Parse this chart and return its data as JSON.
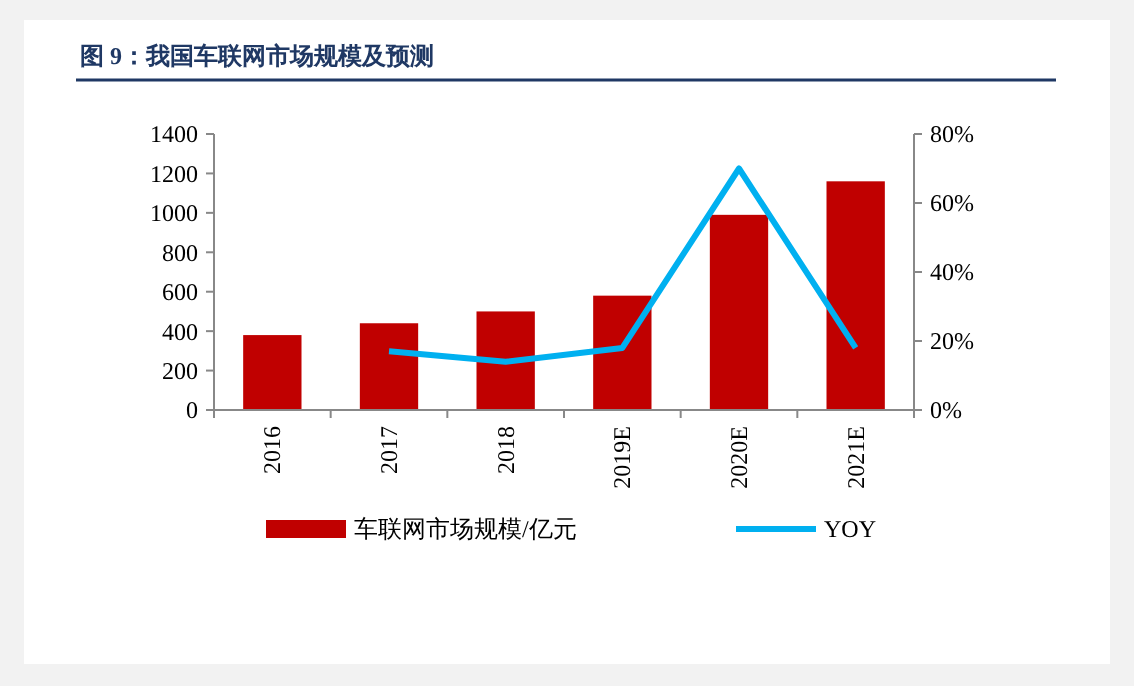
{
  "chart_data": {
    "type": "bar",
    "title": "图 9：我国车联网市场规模及预测",
    "categories": [
      "2016",
      "2017",
      "2018",
      "2019E",
      "2020E",
      "2021E"
    ],
    "series": [
      {
        "name": "车联网市场规模/亿元",
        "color": "#c00000",
        "values": [
          380,
          440,
          500,
          580,
          990,
          1160
        ]
      },
      {
        "name": "YOY",
        "type": "line",
        "axis": "y2",
        "color": "#00b0f0",
        "values": [
          null,
          17,
          14,
          18,
          70,
          18
        ]
      }
    ],
    "ylim": [
      0,
      1400
    ],
    "yticks": [
      0,
      200,
      400,
      600,
      800,
      1000,
      1200,
      1400
    ],
    "y2lim": [
      0,
      80
    ],
    "y2ticks": [
      {
        "value": 0,
        "label": "0%"
      },
      {
        "value": 20,
        "label": "20%"
      },
      {
        "value": 40,
        "label": "40%"
      },
      {
        "value": 60,
        "label": "60%"
      },
      {
        "value": 80,
        "label": "80%"
      }
    ],
    "legend": "bottom",
    "grid": false,
    "marker": "none"
  }
}
